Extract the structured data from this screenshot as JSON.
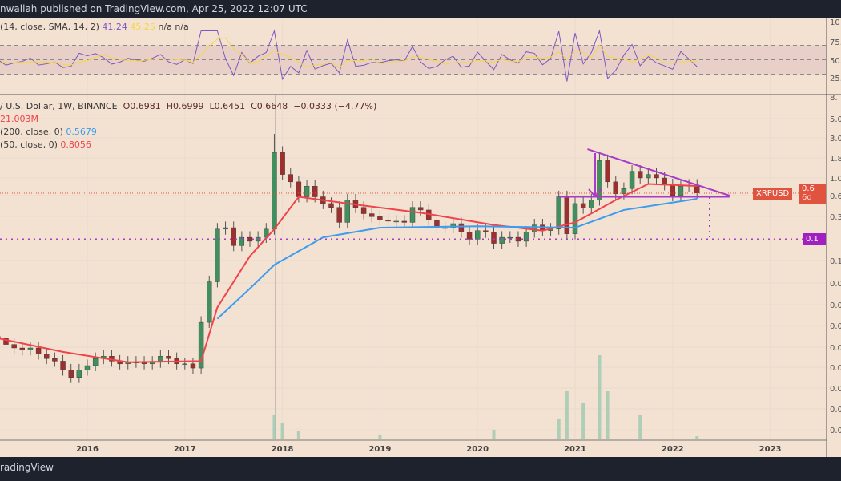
{
  "header": {
    "publisher_text": "nwallah published on TradingView.com, Apr 25, 2022 12:07 UTC"
  },
  "footer": {
    "brand": "radingView"
  },
  "rsi_legend": {
    "label": "(14, close, SMA, 14, 2)",
    "rsi_value": "41.24",
    "sma_value": "45.25",
    "na1": "n/a",
    "na2": "n/a"
  },
  "price_legend": {
    "symbol": "/ U.S. Dollar, 1W, BINANCE",
    "open": "O0.6981",
    "high": "H0.6999",
    "low": "L0.6451",
    "close": "C0.6648",
    "change": "−0.0333 (−4.77%)",
    "volume": "21.003M",
    "ma200_label": "(200, close, 0)",
    "ma200_value": "0.5679",
    "ma50_label": "(50, close, 0)",
    "ma50_value": "0.8056"
  },
  "colors": {
    "background": "#f3e1d2",
    "up": "#3f8f5f",
    "down": "#9e2f2f",
    "ma50": "#f0434a",
    "ma200": "#3d9cf0",
    "rsi": "#7e57c2",
    "rsi_sma": "#f5d742",
    "annotation": "#a63cc8",
    "price_tag": "#e0533f"
  },
  "badges": {
    "symbol_tag": "XRPUSD",
    "price_tag": "0.6",
    "countdown": "6d",
    "target_tag": "0.1"
  },
  "chart_data": {
    "type": "candlestick",
    "scale": "log",
    "x_ticks": [
      "2016",
      "2017",
      "2018",
      "2019",
      "2020",
      "2021",
      "2022",
      "2023"
    ],
    "y_tick_labels": [
      "8.",
      "5.0",
      "3.0",
      "1.8",
      "1.0",
      "0.6",
      "0.3",
      "0.1",
      "0.0",
      "0.0",
      "0.0",
      "0.0",
      "0.0",
      "0.0",
      "0.0",
      "0.0"
    ],
    "rsi_tick_labels": [
      "10",
      "75.",
      "50.",
      "25."
    ],
    "rsi_levels": [
      70,
      50,
      30
    ],
    "closes": [
      [
        "2015-02",
        0.013
      ],
      [
        "2015-03",
        0.011
      ],
      [
        "2015-04",
        0.01
      ],
      [
        "2015-05",
        0.0095
      ],
      [
        "2015-06",
        0.01
      ],
      [
        "2015-07",
        0.0085
      ],
      [
        "2015-08",
        0.0075
      ],
      [
        "2015-09",
        0.007
      ],
      [
        "2015-10",
        0.0055
      ],
      [
        "2015-11",
        0.0045
      ],
      [
        "2015-12",
        0.0055
      ],
      [
        "2016-01",
        0.0062
      ],
      [
        "2016-02",
        0.0075
      ],
      [
        "2016-03",
        0.008
      ],
      [
        "2016-04",
        0.007
      ],
      [
        "2016-05",
        0.0065
      ],
      [
        "2016-06",
        0.0068
      ],
      [
        "2016-07",
        0.0068
      ],
      [
        "2016-08",
        0.0065
      ],
      [
        "2016-09",
        0.0068
      ],
      [
        "2016-10",
        0.008
      ],
      [
        "2016-11",
        0.0075
      ],
      [
        "2016-12",
        0.0065
      ],
      [
        "2017-01",
        0.0065
      ],
      [
        "2017-02",
        0.0058
      ],
      [
        "2017-03",
        0.02
      ],
      [
        "2017-04",
        0.06
      ],
      [
        "2017-05",
        0.25
      ],
      [
        "2017-06",
        0.26
      ],
      [
        "2017-07",
        0.16
      ],
      [
        "2017-08",
        0.2
      ],
      [
        "2017-09",
        0.18
      ],
      [
        "2017-10",
        0.2
      ],
      [
        "2017-11",
        0.25
      ],
      [
        "2017-12",
        2.0
      ],
      [
        "2018-01",
        1.1
      ],
      [
        "2018-02",
        0.9
      ],
      [
        "2018-03",
        0.6
      ],
      [
        "2018-04",
        0.8
      ],
      [
        "2018-05",
        0.6
      ],
      [
        "2018-06",
        0.5
      ],
      [
        "2018-07",
        0.45
      ],
      [
        "2018-08",
        0.3
      ],
      [
        "2018-09",
        0.55
      ],
      [
        "2018-10",
        0.45
      ],
      [
        "2018-11",
        0.38
      ],
      [
        "2018-12",
        0.35
      ],
      [
        "2019-01",
        0.32
      ],
      [
        "2019-02",
        0.31
      ],
      [
        "2019-03",
        0.31
      ],
      [
        "2019-04",
        0.3
      ],
      [
        "2019-05",
        0.45
      ],
      [
        "2019-06",
        0.42
      ],
      [
        "2019-07",
        0.32
      ],
      [
        "2019-08",
        0.26
      ],
      [
        "2019-09",
        0.26
      ],
      [
        "2019-10",
        0.29
      ],
      [
        "2019-11",
        0.23
      ],
      [
        "2019-12",
        0.19
      ],
      [
        "2020-01",
        0.24
      ],
      [
        "2020-02",
        0.23
      ],
      [
        "2020-03",
        0.17
      ],
      [
        "2020-04",
        0.2
      ],
      [
        "2020-05",
        0.2
      ],
      [
        "2020-06",
        0.18
      ],
      [
        "2020-07",
        0.23
      ],
      [
        "2020-08",
        0.28
      ],
      [
        "2020-09",
        0.24
      ],
      [
        "2020-10",
        0.25
      ],
      [
        "2020-11",
        0.6
      ],
      [
        "2020-12",
        0.22
      ],
      [
        "2021-01",
        0.5
      ],
      [
        "2021-02",
        0.44
      ],
      [
        "2021-03",
        0.55
      ],
      [
        "2021-04",
        1.6
      ],
      [
        "2021-05",
        0.9
      ],
      [
        "2021-06",
        0.65
      ],
      [
        "2021-07",
        0.75
      ],
      [
        "2021-08",
        1.2
      ],
      [
        "2021-09",
        1.0
      ],
      [
        "2021-10",
        1.1
      ],
      [
        "2021-11",
        1.0
      ],
      [
        "2021-12",
        0.83
      ],
      [
        "2022-01",
        0.62
      ],
      [
        "2022-02",
        0.8
      ],
      [
        "2022-03",
        0.82
      ],
      [
        "2022-04",
        0.6648
      ]
    ],
    "highs": {
      "2017-12": 3.3,
      "2021-04": 1.96
    },
    "ma50": [
      [
        "2015-02",
        0.013
      ],
      [
        "2015-10",
        0.009
      ],
      [
        "2016-06",
        0.0068
      ],
      [
        "2017-03",
        0.007
      ],
      [
        "2017-05",
        0.03
      ],
      [
        "2017-09",
        0.12
      ],
      [
        "2017-12",
        0.25
      ],
      [
        "2018-03",
        0.6
      ],
      [
        "2018-09",
        0.5
      ],
      [
        "2019-06",
        0.39
      ],
      [
        "2020-03",
        0.28
      ],
      [
        "2020-09",
        0.24
      ],
      [
        "2021-01",
        0.3
      ],
      [
        "2021-06",
        0.55
      ],
      [
        "2021-10",
        0.85
      ],
      [
        "2022-04",
        0.8056
      ]
    ],
    "ma200": [
      [
        "2017-05",
        0.022
      ],
      [
        "2017-09",
        0.05
      ],
      [
        "2017-12",
        0.095
      ],
      [
        "2018-06",
        0.2
      ],
      [
        "2019-01",
        0.26
      ],
      [
        "2020-01",
        0.27
      ],
      [
        "2021-01",
        0.26
      ],
      [
        "2021-07",
        0.42
      ],
      [
        "2022-04",
        0.5679
      ]
    ],
    "volume": [
      [
        "2017-12",
        30
      ],
      [
        "2018-01",
        20
      ],
      [
        "2018-03",
        10
      ],
      [
        "2019-01",
        6
      ],
      [
        "2020-03",
        12
      ],
      [
        "2020-11",
        25
      ],
      [
        "2020-12",
        60
      ],
      [
        "2021-02",
        45
      ],
      [
        "2021-04",
        105
      ],
      [
        "2021-05",
        60
      ],
      [
        "2021-09",
        30
      ],
      [
        "2022-04",
        4
      ]
    ],
    "annotations": {
      "triangle_upper": [
        [
          "2021-04",
          1.96
        ],
        [
          "2022-08",
          0.62
        ]
      ],
      "support": [
        [
          "2020-12",
          0.6
        ],
        [
          "2022-08",
          0.6
        ]
      ],
      "target": 0.19
    }
  }
}
